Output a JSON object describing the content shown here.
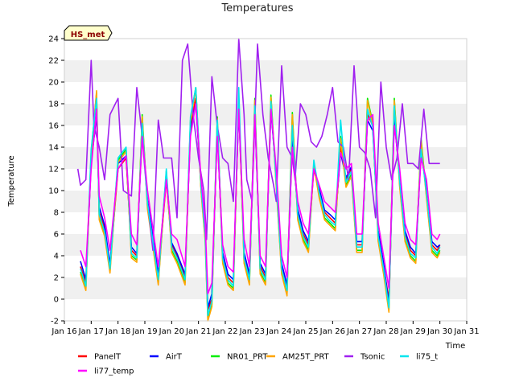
{
  "chart_data": {
    "type": "line",
    "title": "Temperatures",
    "xlabel": "Time",
    "ylabel": "Temperature",
    "badge": "HS_met",
    "ylim": [
      -2,
      24
    ],
    "yticks": [
      -2,
      0,
      2,
      4,
      6,
      8,
      10,
      12,
      14,
      16,
      18,
      20,
      22,
      24
    ],
    "xlim": [
      16,
      31
    ],
    "xticks": [
      16,
      17,
      18,
      19,
      20,
      21,
      22,
      23,
      24,
      25,
      26,
      27,
      28,
      29,
      30,
      31
    ],
    "xtick_labels": [
      "Jan 16",
      "Jan 17",
      "Jan 18",
      "Jan 19",
      "Jan 20",
      "Jan 21",
      "Jan 22",
      "Jan 23",
      "Jan 24",
      "Jan 25",
      "Jan 26",
      "Jan 27",
      "Jan 28",
      "Jan 29",
      "Jan 30",
      "Jan 31"
    ],
    "grid": "horizontal bands",
    "legend_position": "bottom",
    "series": [
      {
        "name": "PanelT",
        "color": "#ff0000",
        "x": [
          16.6,
          16.8,
          17.0,
          17.2,
          17.3,
          17.5,
          17.7,
          18.0,
          18.3,
          18.5,
          18.7,
          18.9,
          19.1,
          19.5,
          19.8,
          20.0,
          20.2,
          20.5,
          20.7,
          20.9,
          21.1,
          21.25,
          21.35,
          21.5,
          21.7,
          21.9,
          22.1,
          22.3,
          22.5,
          22.7,
          22.9,
          23.1,
          23.3,
          23.5,
          23.7,
          23.9,
          24.1,
          24.3,
          24.5,
          24.7,
          24.9,
          25.1,
          25.3,
          25.5,
          25.7,
          25.9,
          26.1,
          26.3,
          26.5,
          26.7,
          26.9,
          27.1,
          27.3,
          27.5,
          27.7,
          27.9,
          28.1,
          28.3,
          28.5,
          28.7,
          28.9,
          29.1,
          29.3,
          29.5,
          29.7,
          29.9,
          30.0
        ],
        "y": [
          3.0,
          1.5,
          13.0,
          18.0,
          8.0,
          6.5,
          3.0,
          12.0,
          13.0,
          4.5,
          4.0,
          16.0,
          9.0,
          2.0,
          11.0,
          5.0,
          4.0,
          2.0,
          16.0,
          18.5,
          10.0,
          6.0,
          -1.0,
          0.0,
          16.0,
          4.0,
          2.0,
          1.5,
          18.0,
          4.0,
          2.0,
          17.5,
          3.0,
          2.0,
          18.0,
          11.0,
          3.0,
          1.0,
          15.0,
          8.0,
          6.0,
          5.0,
          12.0,
          10.0,
          8.0,
          7.5,
          7.0,
          14.0,
          11.0,
          12.0,
          5.0,
          5.0,
          17.0,
          16.0,
          6.0,
          3.0,
          0.0,
          17.0,
          11.0,
          6.0,
          4.5,
          4.0,
          14.0,
          10.0,
          5.0,
          4.5,
          5.0
        ]
      },
      {
        "name": "AirT",
        "color": "#0000ff",
        "x": [
          16.6,
          16.8,
          17.0,
          17.2,
          17.3,
          17.5,
          17.7,
          18.0,
          18.3,
          18.5,
          18.7,
          18.9,
          19.1,
          19.5,
          19.8,
          20.0,
          20.2,
          20.5,
          20.7,
          20.9,
          21.1,
          21.25,
          21.35,
          21.5,
          21.7,
          21.9,
          22.1,
          22.3,
          22.5,
          22.7,
          22.9,
          23.1,
          23.3,
          23.5,
          23.7,
          23.9,
          24.1,
          24.3,
          24.5,
          24.7,
          24.9,
          25.1,
          25.3,
          25.5,
          25.7,
          25.9,
          26.1,
          26.3,
          26.5,
          26.7,
          26.9,
          27.1,
          27.3,
          27.5,
          27.7,
          27.9,
          28.1,
          28.3,
          28.5,
          28.7,
          28.9,
          29.1,
          29.3,
          29.5,
          29.7,
          29.9,
          30.0
        ],
        "y": [
          3.5,
          1.8,
          12.5,
          17.0,
          8.5,
          6.8,
          3.2,
          12.5,
          13.2,
          4.8,
          4.2,
          15.5,
          9.2,
          2.3,
          11.5,
          5.2,
          4.2,
          2.3,
          15.5,
          18.0,
          10.5,
          6.3,
          -0.8,
          0.5,
          15.5,
          4.3,
          2.3,
          1.8,
          17.5,
          4.3,
          2.3,
          17.0,
          3.3,
          2.3,
          17.5,
          11.2,
          3.3,
          1.3,
          14.5,
          8.3,
          6.3,
          5.3,
          12.2,
          10.2,
          8.2,
          7.8,
          7.3,
          13.5,
          11.2,
          12.2,
          5.3,
          5.3,
          16.5,
          15.5,
          6.3,
          3.3,
          -0.5,
          16.5,
          11.2,
          6.3,
          4.8,
          4.2,
          13.5,
          10.2,
          5.3,
          4.8,
          5.0
        ]
      },
      {
        "name": "NR01_PRT",
        "color": "#00ee00",
        "x": [
          16.6,
          16.8,
          17.0,
          17.2,
          17.3,
          17.5,
          17.7,
          18.0,
          18.3,
          18.5,
          18.7,
          18.9,
          19.1,
          19.5,
          19.8,
          20.0,
          20.2,
          20.5,
          20.7,
          20.9,
          21.1,
          21.25,
          21.35,
          21.5,
          21.7,
          21.9,
          22.1,
          22.3,
          22.5,
          22.7,
          22.9,
          23.1,
          23.3,
          23.5,
          23.7,
          23.9,
          24.1,
          24.3,
          24.5,
          24.7,
          24.9,
          25.1,
          25.3,
          25.5,
          25.7,
          25.9,
          26.1,
          26.3,
          26.5,
          26.7,
          26.9,
          27.1,
          27.3,
          27.5,
          27.7,
          27.9,
          28.1,
          28.3,
          28.5,
          28.7,
          28.9,
          29.1,
          29.3,
          29.5,
          29.7,
          29.9,
          30.0
        ],
        "y": [
          2.5,
          1.0,
          13.5,
          19.0,
          7.5,
          6.0,
          2.6,
          12.8,
          13.8,
          4.0,
          3.6,
          17.0,
          8.5,
          1.5,
          11.8,
          4.5,
          3.5,
          1.5,
          16.5,
          19.5,
          10.0,
          5.5,
          -1.8,
          -0.5,
          16.8,
          3.5,
          1.5,
          1.0,
          18.5,
          3.5,
          1.5,
          18.5,
          2.5,
          1.5,
          18.8,
          10.5,
          2.5,
          0.5,
          17.2,
          7.5,
          5.5,
          4.5,
          12.5,
          9.5,
          7.5,
          7.0,
          6.5,
          15.0,
          10.5,
          11.5,
          4.5,
          4.5,
          18.5,
          16.2,
          5.5,
          2.5,
          -1.0,
          18.5,
          10.5,
          5.5,
          4.0,
          3.5,
          14.8,
          9.5,
          4.5,
          4.0,
          4.5
        ]
      },
      {
        "name": "AM25T_PRT",
        "color": "#ffa500",
        "x": [
          16.6,
          16.8,
          17.0,
          17.2,
          17.3,
          17.5,
          17.7,
          18.0,
          18.3,
          18.5,
          18.7,
          18.9,
          19.1,
          19.5,
          19.8,
          20.0,
          20.2,
          20.5,
          20.7,
          20.9,
          21.1,
          21.25,
          21.35,
          21.5,
          21.7,
          21.9,
          22.1,
          22.3,
          22.5,
          22.7,
          22.9,
          23.1,
          23.3,
          23.5,
          23.7,
          23.9,
          24.1,
          24.3,
          24.5,
          24.7,
          24.9,
          25.1,
          25.3,
          25.5,
          25.7,
          25.9,
          26.1,
          26.3,
          26.5,
          26.7,
          26.9,
          27.1,
          27.3,
          27.5,
          27.7,
          27.9,
          28.1,
          28.3,
          28.5,
          28.7,
          28.9,
          29.1,
          29.3,
          29.5,
          29.7,
          29.9,
          30.0
        ],
        "y": [
          2.3,
          0.8,
          13.2,
          19.2,
          7.3,
          5.8,
          2.4,
          12.6,
          13.6,
          3.8,
          3.4,
          16.8,
          8.3,
          1.3,
          11.6,
          4.3,
          3.3,
          1.3,
          16.3,
          19.3,
          9.8,
          5.3,
          -2.0,
          -0.7,
          16.6,
          3.3,
          1.3,
          0.8,
          18.3,
          3.3,
          1.3,
          18.3,
          2.3,
          1.3,
          18.6,
          10.3,
          2.3,
          0.3,
          17.0,
          7.3,
          5.3,
          4.3,
          12.3,
          9.3,
          7.3,
          6.8,
          6.3,
          14.8,
          10.3,
          11.3,
          4.3,
          4.3,
          18.3,
          16.0,
          5.3,
          2.3,
          -1.2,
          18.3,
          10.3,
          5.3,
          3.8,
          3.3,
          14.6,
          9.3,
          4.3,
          3.8,
          4.3
        ]
      },
      {
        "name": "Tsonic",
        "color": "#a020f0",
        "x": [
          16.5,
          16.6,
          16.8,
          17.0,
          17.1,
          17.3,
          17.5,
          17.7,
          18.0,
          18.2,
          18.5,
          18.7,
          18.9,
          19.1,
          19.3,
          19.5,
          19.7,
          20.0,
          20.2,
          20.4,
          20.6,
          20.8,
          21.0,
          21.2,
          21.3,
          21.5,
          21.7,
          21.9,
          22.1,
          22.3,
          22.5,
          22.7,
          22.8,
          23.0,
          23.2,
          23.4,
          23.6,
          23.8,
          23.9,
          24.1,
          24.3,
          24.5,
          24.6,
          24.8,
          25.0,
          25.2,
          25.4,
          25.6,
          25.8,
          26.0,
          26.2,
          26.4,
          26.6,
          26.8,
          27.0,
          27.2,
          27.4,
          27.6,
          27.8,
          28.0,
          28.2,
          28.4,
          28.6,
          28.8,
          29.0,
          29.2,
          29.4,
          29.6,
          29.8,
          30.0
        ],
        "y": [
          12.0,
          10.5,
          11.0,
          22.0,
          16.0,
          14.0,
          11.0,
          17.0,
          18.5,
          10.0,
          9.5,
          19.5,
          15.0,
          9.0,
          4.5,
          16.5,
          13.0,
          13.0,
          7.5,
          22.0,
          23.5,
          17.0,
          13.0,
          10.0,
          5.5,
          20.5,
          16.0,
          13.0,
          12.5,
          9.0,
          24.0,
          17.0,
          11.0,
          9.0,
          23.5,
          17.0,
          13.0,
          10.5,
          9.0,
          21.5,
          14.0,
          13.0,
          11.0,
          18.0,
          17.0,
          14.5,
          14.0,
          15.0,
          17.0,
          19.5,
          14.5,
          14.0,
          11.0,
          21.5,
          14.0,
          13.5,
          12.0,
          7.5,
          20.0,
          14.0,
          11.0,
          13.0,
          18.0,
          12.5,
          12.5,
          12.0,
          17.5,
          12.5,
          12.5,
          12.5
        ]
      },
      {
        "name": "li75_t",
        "color": "#00e5ee",
        "x": [
          16.6,
          16.8,
          17.0,
          17.2,
          17.3,
          17.5,
          17.7,
          18.0,
          18.3,
          18.5,
          18.7,
          18.9,
          19.1,
          19.5,
          19.8,
          20.0,
          20.2,
          20.5,
          20.7,
          20.9,
          21.1,
          21.25,
          21.35,
          21.5,
          21.7,
          21.9,
          22.1,
          22.3,
          22.5,
          22.7,
          22.9,
          23.1,
          23.3,
          23.5,
          23.7,
          23.9,
          24.1,
          24.3,
          24.5,
          24.7,
          24.9,
          25.1,
          25.3,
          25.5,
          25.7,
          25.9,
          26.1,
          26.3,
          26.5,
          26.7,
          26.9,
          27.1,
          27.3,
          27.5,
          27.7,
          27.9,
          28.1,
          28.3,
          28.5,
          28.7,
          28.9,
          29.1,
          29.3,
          29.5,
          29.7,
          29.9,
          30.0
        ],
        "y": [
          2.8,
          1.2,
          13.8,
          18.5,
          7.8,
          6.2,
          2.8,
          13.0,
          14.0,
          4.2,
          3.8,
          16.2,
          8.8,
          1.8,
          12.0,
          4.8,
          3.8,
          1.8,
          16.8,
          19.5,
          10.2,
          5.8,
          -1.5,
          -0.2,
          16.5,
          3.8,
          1.8,
          1.2,
          19.5,
          3.8,
          1.8,
          17.8,
          2.8,
          1.8,
          18.2,
          10.8,
          2.8,
          0.8,
          16.0,
          7.8,
          5.8,
          4.8,
          12.8,
          9.8,
          7.8,
          7.2,
          6.8,
          16.5,
          10.8,
          11.8,
          4.8,
          4.8,
          17.5,
          15.8,
          5.8,
          2.8,
          -0.8,
          17.8,
          10.8,
          5.8,
          4.2,
          3.8,
          13.8,
          9.8,
          4.8,
          4.2,
          4.8
        ]
      },
      {
        "name": "li77_temp",
        "color": "#ff00ff",
        "x": [
          16.6,
          16.8,
          17.0,
          17.2,
          17.3,
          17.5,
          17.7,
          18.0,
          18.3,
          18.5,
          18.7,
          18.9,
          19.1,
          19.5,
          19.8,
          20.0,
          20.2,
          20.5,
          20.7,
          20.9,
          21.1,
          21.25,
          21.35,
          21.5,
          21.7,
          21.9,
          22.1,
          22.3,
          22.5,
          22.7,
          22.9,
          23.1,
          23.3,
          23.5,
          23.7,
          23.9,
          24.1,
          24.3,
          24.5,
          24.7,
          24.9,
          25.1,
          25.3,
          25.5,
          25.7,
          25.9,
          26.1,
          26.3,
          26.5,
          26.7,
          26.9,
          27.1,
          27.3,
          27.5,
          27.7,
          27.9,
          28.1,
          28.3,
          28.5,
          28.7,
          28.9,
          29.1,
          29.3,
          29.5,
          29.7,
          29.9,
          30.0
        ],
        "y": [
          4.5,
          3.0,
          12.0,
          17.5,
          9.5,
          7.5,
          4.5,
          12.0,
          13.2,
          6.0,
          5.0,
          15.0,
          10.0,
          3.0,
          11.0,
          6.0,
          5.5,
          3.0,
          15.0,
          18.0,
          11.0,
          7.0,
          0.5,
          1.5,
          15.0,
          5.0,
          3.0,
          2.5,
          17.5,
          5.5,
          3.0,
          17.0,
          4.0,
          3.0,
          17.5,
          12.0,
          4.0,
          2.0,
          14.0,
          9.0,
          7.0,
          6.0,
          12.0,
          10.5,
          9.0,
          8.5,
          8.0,
          13.5,
          12.0,
          12.5,
          6.0,
          6.0,
          16.5,
          17.0,
          7.0,
          4.0,
          1.0,
          16.0,
          12.0,
          7.0,
          5.5,
          5.0,
          13.0,
          11.0,
          6.0,
          5.5,
          6.0
        ]
      }
    ]
  }
}
